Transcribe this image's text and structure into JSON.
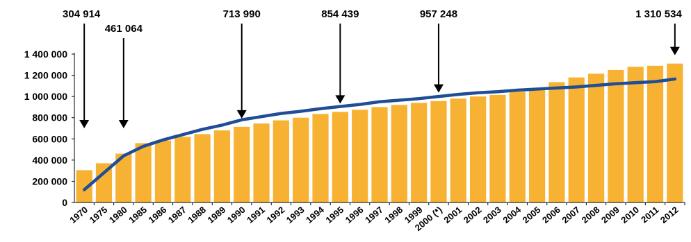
{
  "chart_data": {
    "type": "bar",
    "categories": [
      "1970",
      "1975",
      "1980",
      "1985",
      "1986",
      "1987",
      "1988",
      "1989",
      "1990",
      "1991",
      "1992",
      "1993",
      "1994",
      "1995",
      "1996",
      "1997",
      "1998",
      "1999",
      "2000 (*)",
      "2001",
      "2002",
      "2003",
      "2004",
      "2005",
      "2006",
      "2007",
      "2008",
      "2009",
      "2010",
      "2011",
      "2012"
    ],
    "series": [
      {
        "type": "bar",
        "color": "#F7B233",
        "values": [
          304914,
          370000,
          461064,
          560000,
          585000,
          620000,
          645000,
          680000,
          713990,
          745000,
          775000,
          800000,
          835000,
          854439,
          875000,
          900000,
          920000,
          940000,
          957248,
          980000,
          1000000,
          1015000,
          1045000,
          1070000,
          1135000,
          1180000,
          1215000,
          1250000,
          1280000,
          1290000,
          1310534
        ]
      },
      {
        "type": "line",
        "color": "#1F4E96",
        "values": [
          120000,
          280000,
          440000,
          530000,
          590000,
          640000,
          690000,
          730000,
          780000,
          810000,
          840000,
          860000,
          885000,
          905000,
          925000,
          950000,
          965000,
          980000,
          1000000,
          1020000,
          1035000,
          1045000,
          1060000,
          1070000,
          1080000,
          1090000,
          1105000,
          1120000,
          1130000,
          1140000,
          1165000
        ]
      }
    ],
    "ylim": [
      0,
      1400000
    ],
    "yticks": [
      "0",
      "200 000",
      "400 000",
      "600 000",
      "800 000",
      "1 000 000",
      "1 200 000",
      "1 400 000"
    ],
    "grid": false,
    "annotations": [
      {
        "text": "304 914",
        "category": "1970"
      },
      {
        "text": "461 064",
        "category": "1980"
      },
      {
        "text": "713 990",
        "category": "1990"
      },
      {
        "text": "854 439",
        "category": "1995"
      },
      {
        "text": "957 248",
        "category": "2000 (*)"
      },
      {
        "text": "1  310 534",
        "category": "2012"
      }
    ]
  }
}
